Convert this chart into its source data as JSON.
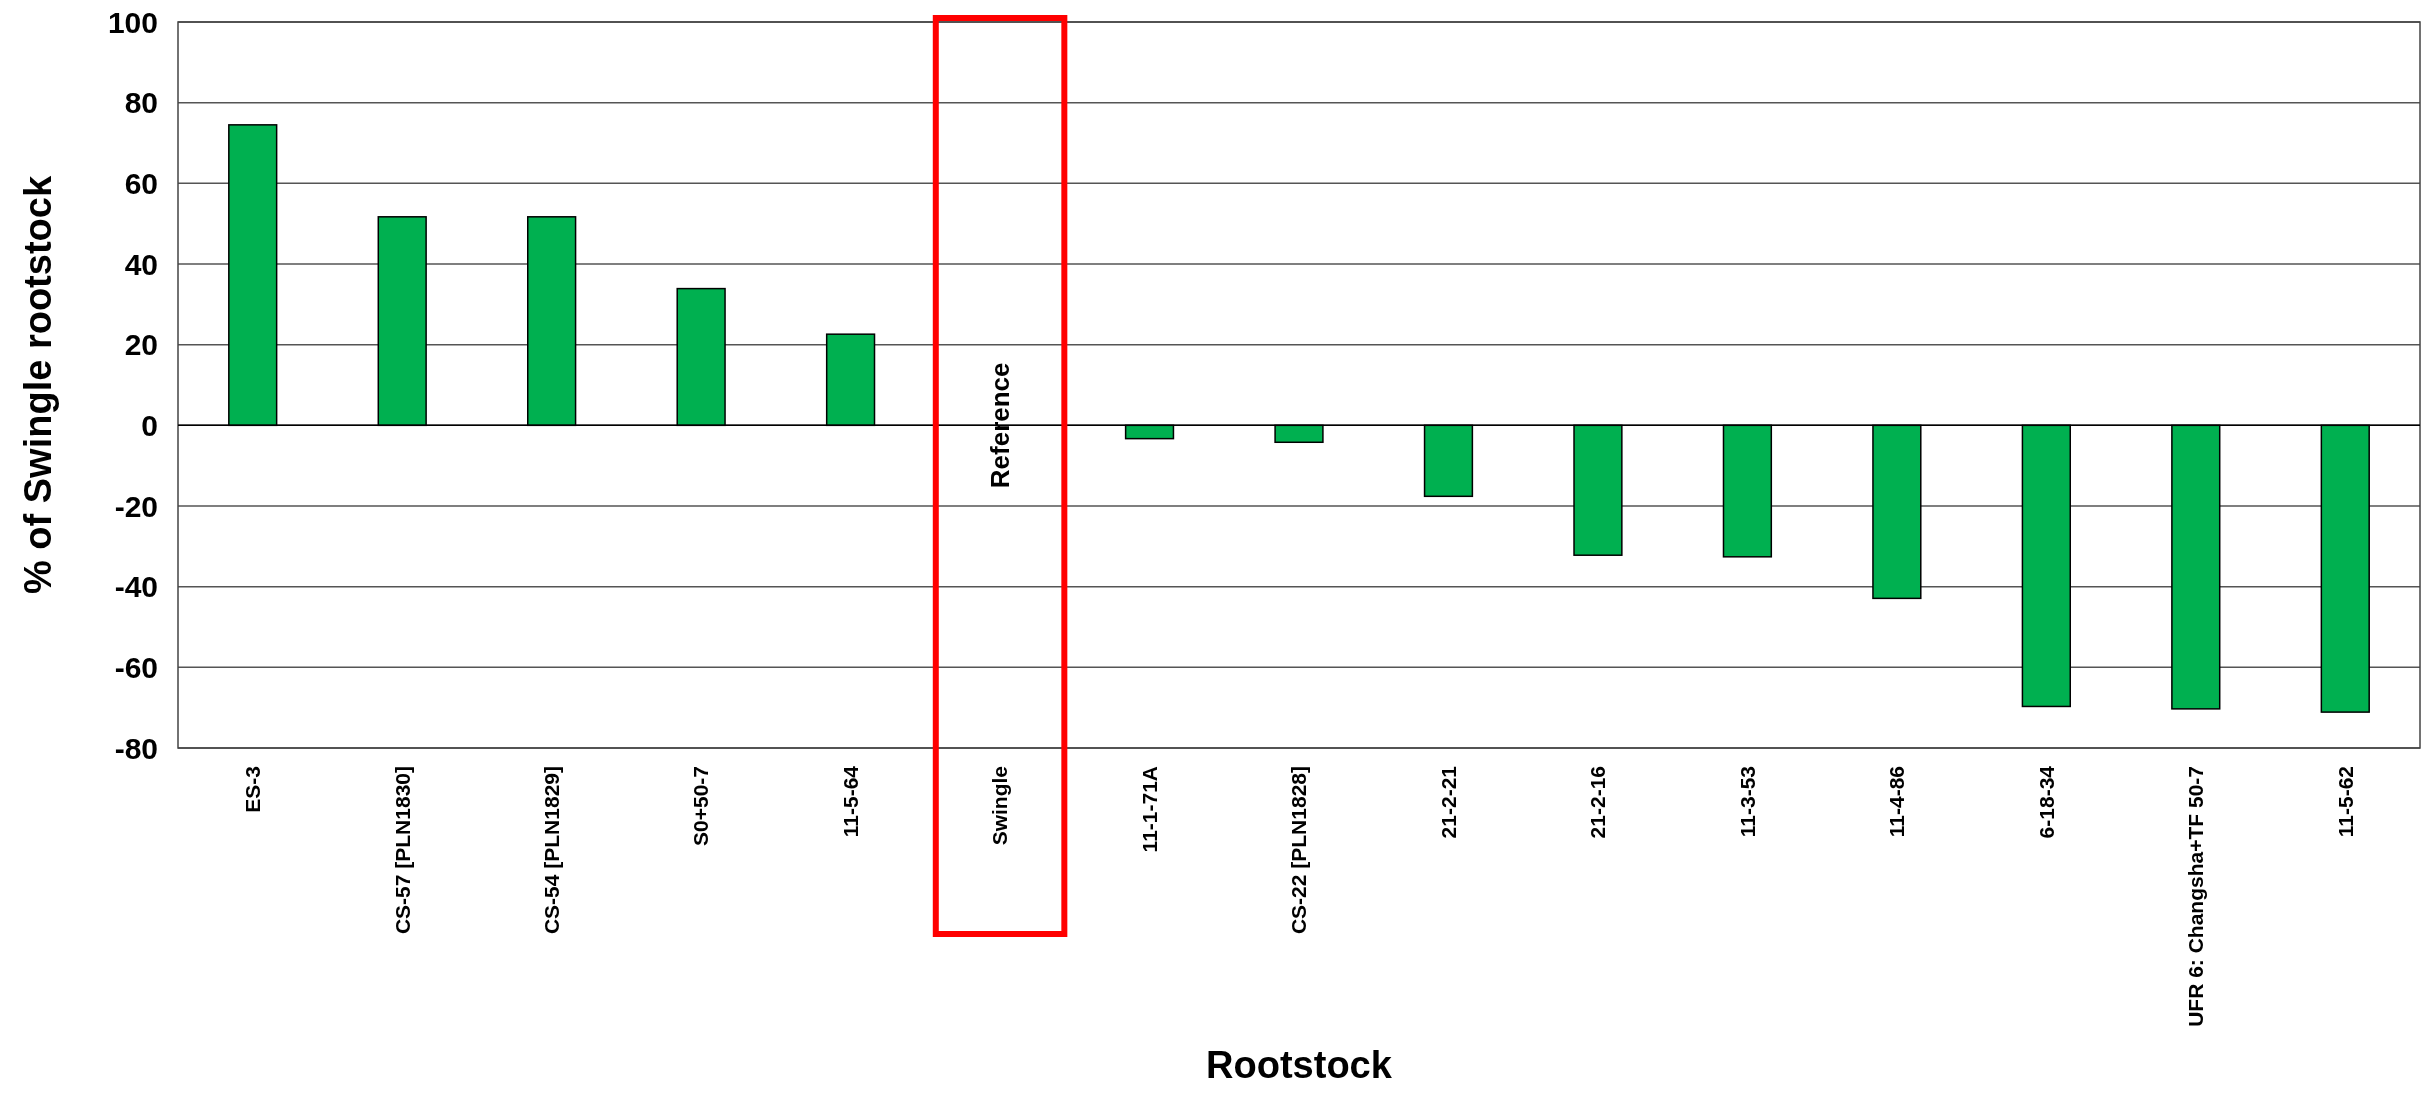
{
  "chart_data": {
    "type": "bar",
    "xlabel": "Rootstock",
    "ylabel": "% of Swingle rootstock",
    "categories": [
      "ES-3",
      "CS-57 [PLN1830]",
      "CS-54 [PLN1829]",
      "S0+50-7",
      "11-5-64",
      "Swingle",
      "11-1-71A",
      "CS-22 [PLN1828]",
      "21-2-21",
      "21-2-16",
      "11-3-53",
      "11-4-86",
      "6-18-34",
      "UFR 6: Changsha+TF 50-7",
      "11-5-62"
    ],
    "values": [
      74.5,
      51.7,
      51.7,
      33.9,
      22.6,
      null,
      -3.3,
      -4.2,
      -17.6,
      -32.2,
      -32.6,
      -42.9,
      -69.7,
      -70.3,
      -71.1
    ],
    "color": "#00b050",
    "ylim": [
      -80,
      100
    ],
    "yticks": [
      -80,
      -60,
      -40,
      -20,
      0,
      20,
      40,
      60,
      80,
      100
    ],
    "grid": "y",
    "annotations": [
      "Reference"
    ]
  }
}
